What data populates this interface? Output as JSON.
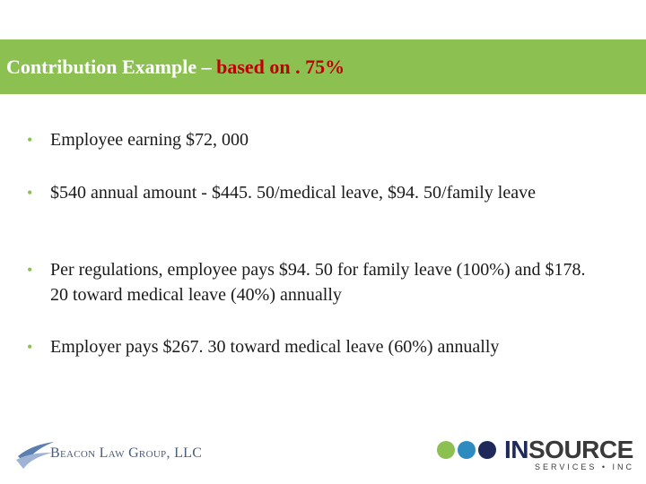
{
  "slide": {
    "title_main": "Contribution Example – ",
    "title_accent": "based on . 75%",
    "bullets": [
      "Employee earning $72, 000",
      "$540 annual amount - $445. 50/medical leave, $94. 50/family leave",
      "Per regulations, employee pays $94. 50 for family leave (100%) and $178. 20 toward medical leave (40%) annually",
      "Employer pays $267. 30 toward medical leave (60%) annually"
    ]
  },
  "footer": {
    "left_logo_text": "Beacon Law Group, LLC",
    "right_logo_in": "IN",
    "right_logo_rest": "SOURCE",
    "right_logo_sub": "SERVICES • INC"
  },
  "colors": {
    "title_bar": "#8cc152",
    "accent": "#c00000",
    "bullet_dot": "#8cc152",
    "dot1": "#8cc152",
    "dot2": "#2e8bc0",
    "dot3": "#1f2a5a"
  }
}
